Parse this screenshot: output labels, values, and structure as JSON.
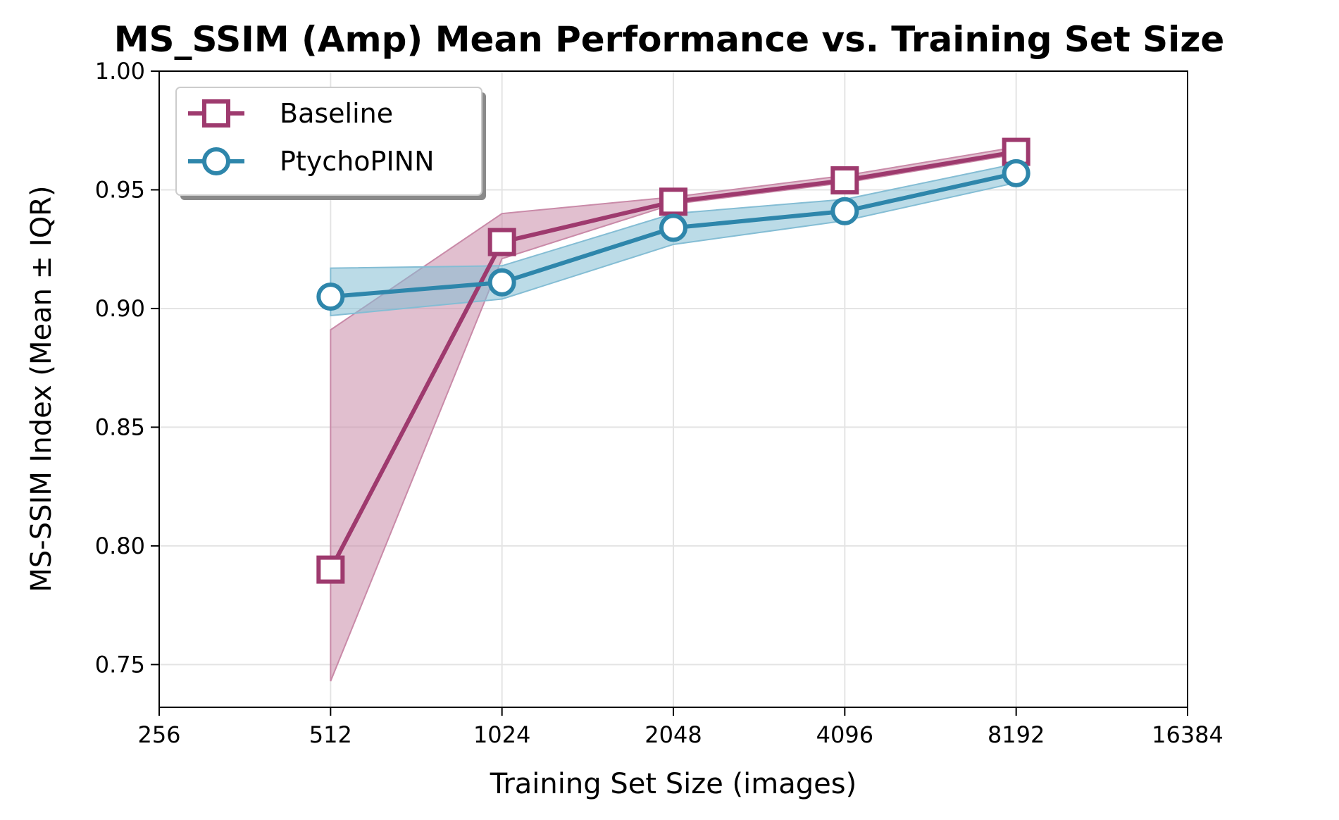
{
  "chart_data": {
    "type": "line",
    "title": "MS_SSIM (Amp) Mean Performance vs. Training Set Size",
    "xlabel": "Training Set Size (images)",
    "ylabel": "MS-SSIM Index (Mean ± IQR)",
    "x_scale": "log2",
    "xlim": [
      256,
      16384
    ],
    "ylim": [
      0.732,
      1.0
    ],
    "x_ticks": [
      256,
      512,
      1024,
      2048,
      4096,
      8192,
      16384
    ],
    "x_tick_labels": [
      "256",
      "512",
      "1024",
      "2048",
      "4096",
      "8192",
      "16384"
    ],
    "y_ticks": [
      0.75,
      0.8,
      0.85,
      0.9,
      0.95,
      1.0
    ],
    "y_tick_labels": [
      "0.75",
      "0.80",
      "0.85",
      "0.90",
      "0.95",
      "1.00"
    ],
    "grid": true,
    "legend_position": "top-left",
    "x": [
      512,
      1024,
      2048,
      4096,
      8192
    ],
    "series": [
      {
        "name": "Baseline",
        "marker": "square",
        "color": "#9e3a6e",
        "band_color": "#c98aa8",
        "values": [
          0.79,
          0.928,
          0.945,
          0.954,
          0.966
        ],
        "iqr_low": [
          0.743,
          0.921,
          0.944,
          0.953,
          0.965
        ],
        "iqr_high": [
          0.891,
          0.94,
          0.947,
          0.956,
          0.968
        ]
      },
      {
        "name": "PtychoPINN",
        "marker": "circle",
        "color": "#2e86ab",
        "band_color": "#84bdd4",
        "values": [
          0.905,
          0.911,
          0.934,
          0.941,
          0.957
        ],
        "iqr_low": [
          0.897,
          0.904,
          0.927,
          0.937,
          0.953
        ],
        "iqr_high": [
          0.917,
          0.918,
          0.94,
          0.946,
          0.961
        ]
      }
    ]
  }
}
